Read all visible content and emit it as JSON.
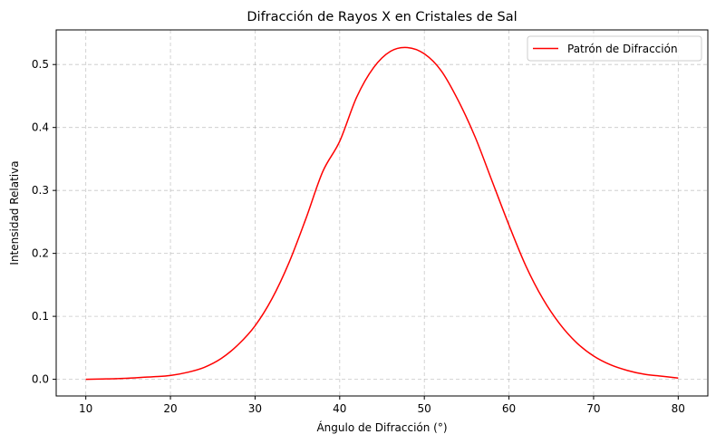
{
  "chart_data": {
    "type": "line",
    "title": "Difracción de Rayos X en Cristales de Sal",
    "xlabel": "Ángulo de Difracción (°)",
    "ylabel": "Intensidad Relativa",
    "xlim": [
      6.5,
      83.5
    ],
    "ylim": [
      -0.0265,
      0.555
    ],
    "xticks": [
      10,
      20,
      30,
      40,
      50,
      60,
      70,
      80
    ],
    "yticks": [
      0.0,
      0.1,
      0.2,
      0.3,
      0.4,
      0.5
    ],
    "xtick_labels": [
      "10",
      "20",
      "30",
      "40",
      "50",
      "60",
      "70",
      "80"
    ],
    "ytick_labels": [
      "0.0",
      "0.1",
      "0.2",
      "0.3",
      "0.4",
      "0.5"
    ],
    "grid": true,
    "legend_position": "top-right",
    "series": [
      {
        "name": "Patrón de Difracción",
        "color": "#ff0000",
        "x": [
          10,
          12,
          14,
          16,
          18,
          20,
          22,
          24,
          26,
          28,
          30,
          32,
          34,
          36,
          38,
          40,
          42,
          44,
          46,
          48,
          50,
          52,
          54,
          56,
          58,
          60,
          62,
          64,
          66,
          68,
          70,
          72,
          74,
          76,
          78,
          80
        ],
        "y": [
          0.0,
          0.0005,
          0.0012,
          0.0025,
          0.004,
          0.006,
          0.011,
          0.019,
          0.033,
          0.055,
          0.085,
          0.128,
          0.185,
          0.255,
          0.33,
          0.378,
          0.448,
          0.495,
          0.521,
          0.527,
          0.517,
          0.49,
          0.443,
          0.385,
          0.315,
          0.245,
          0.18,
          0.128,
          0.088,
          0.058,
          0.037,
          0.023,
          0.014,
          0.008,
          0.005,
          0.002
        ]
      }
    ]
  }
}
